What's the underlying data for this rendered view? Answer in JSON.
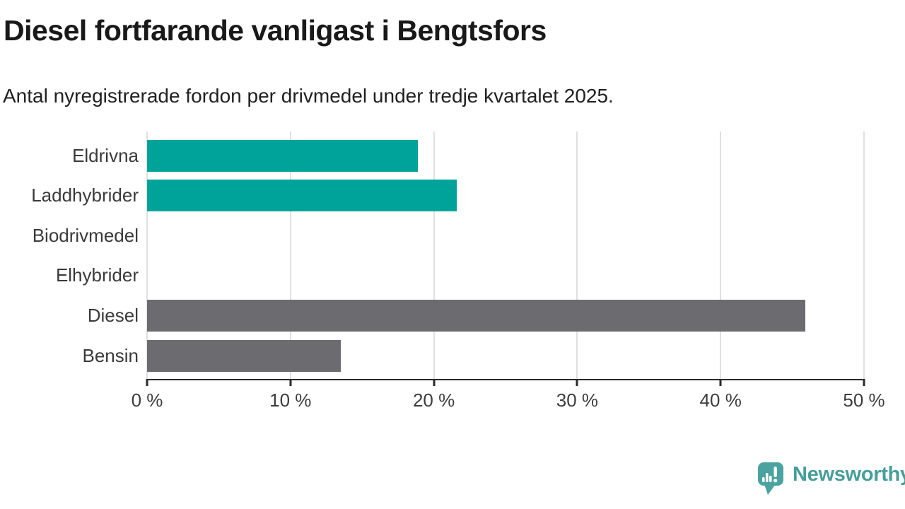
{
  "title": "Diesel fortfarande vanligast i Bengtsfors",
  "subtitle": "Antal nyregistrerade fordon per drivmedel under tredje kvartalet 2025.",
  "chart_data": {
    "type": "bar",
    "orientation": "horizontal",
    "categories": [
      "Eldrivna",
      "Laddhybrider",
      "Biodrivmedel",
      "Elhybrider",
      "Diesel",
      "Bensin"
    ],
    "values": [
      18.9,
      21.6,
      0,
      0,
      45.9,
      13.5
    ],
    "unit": "%",
    "xlabel": "",
    "ylabel": "",
    "xlim": [
      0,
      50
    ],
    "x_tick_values": [
      0,
      10,
      20,
      30,
      40,
      50
    ],
    "x_ticks": [
      "0 %",
      "10 %",
      "20 %",
      "30 %",
      "40 %",
      "50 %"
    ],
    "grid": true,
    "legend": false,
    "bar_colors": [
      "#00a39a",
      "#00a39a",
      "#00a39a",
      "#00a39a",
      "#6b6b70",
      "#6b6b70"
    ]
  },
  "colors": {
    "accent_teal": "#00a39a",
    "neutral_gray": "#6b6b70",
    "gridline": "#e0e0e0",
    "axis": "#2b2b2b",
    "title_text": "#191919",
    "label_text": "#3a3a3a",
    "logo_teal": "#4ba3a0"
  },
  "logo": {
    "text": "Newsworthy",
    "icon": "newsworthy-speech-bubble-chart-icon"
  }
}
